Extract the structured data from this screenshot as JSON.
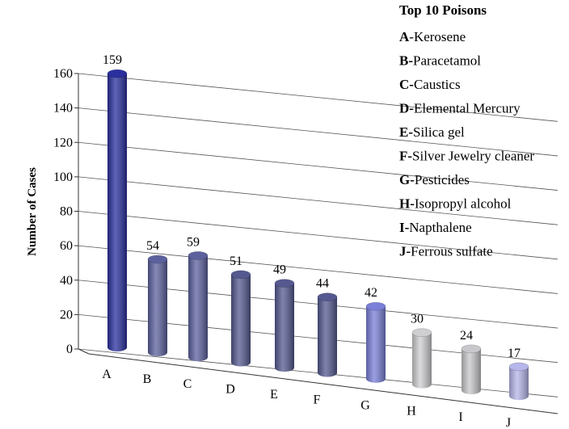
{
  "chart_data": {
    "type": "bar",
    "title": "Top 10 Poisons",
    "y_label": "Number of Cases",
    "categories": [
      "A",
      "B",
      "C",
      "D",
      "E",
      "F",
      "G",
      "H",
      "I",
      "J"
    ],
    "values": [
      159,
      54,
      59,
      51,
      49,
      44,
      42,
      30,
      24,
      17
    ],
    "colors": [
      "#2a2f9e",
      "#5c619e",
      "#5c619e",
      "#55598f",
      "#55598f",
      "#55598f",
      "#7a80d8",
      "#cfcfd2",
      "#c8c8cc",
      "#b6b6ea"
    ],
    "ylim": [
      0,
      160
    ],
    "yticks": [
      0,
      20,
      40,
      60,
      80,
      100,
      120,
      140,
      160
    ],
    "grid": true,
    "legend": [
      {
        "key": "A",
        "text": "-Kerosene"
      },
      {
        "key": "B-",
        "text": "Paracetamol"
      },
      {
        "key": "C-",
        "text": "Caustics"
      },
      {
        "key": "D-",
        "text": "Elemental Mercury"
      },
      {
        "key": "E-",
        "text": "Silica gel"
      },
      {
        "key": "F-",
        "text": "Silver Jewelry cleaner"
      },
      {
        "key": "G-",
        "text": "Pesticides"
      },
      {
        "key": "H-",
        "text": "Isopropyl alcohol"
      },
      {
        "key": "I-",
        "text": "Napthalene"
      },
      {
        "key": "J-",
        "text": "Ferrous sulfate"
      }
    ]
  }
}
